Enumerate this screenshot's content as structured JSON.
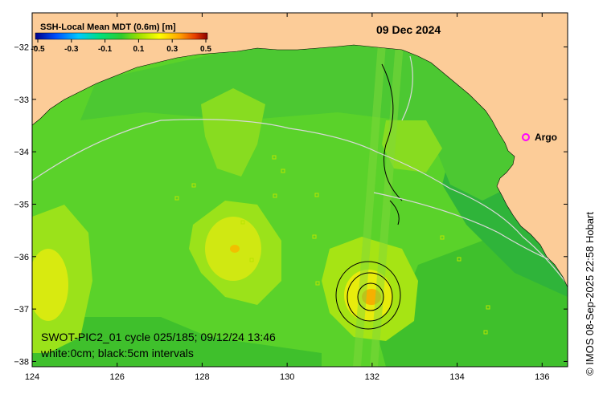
{
  "map": {
    "date": "09 Dec 2024",
    "colorbar": {
      "title": "SSH-Local Mean MDT (0.6m) [m]",
      "ticks": [
        "-0.5",
        "-0.3",
        "-0.1",
        "0.1",
        "0.3",
        "0.5"
      ],
      "range": [
        -0.5,
        0.5
      ],
      "colors": [
        "#00008b",
        "#0050ff",
        "#00c8ff",
        "#00e07a",
        "#2ecc2e",
        "#9be000",
        "#ffff00",
        "#ffa000",
        "#e63c00",
        "#8b0000"
      ]
    },
    "x_ticks": [
      124,
      126,
      128,
      130,
      132,
      134,
      136
    ],
    "x_tick_labels": [
      "124",
      "126",
      "128",
      "130",
      "132",
      "134",
      "136"
    ],
    "y_ticks": [
      -32,
      -33,
      -34,
      -35,
      -36,
      -37,
      -38
    ],
    "y_tick_labels": [
      "−32",
      "−33",
      "−34",
      "−35",
      "−36",
      "−37",
      "−38"
    ],
    "lon_range": [
      124,
      136.6
    ],
    "lat_range": [
      -38.1,
      -31.35
    ],
    "argo_label": "Argo",
    "argo_location": [
      135.5,
      -33.6
    ],
    "annotation_line1": "SWOT-PIC2_01 cycle 025/185; 09/12/24 13:46",
    "annotation_line2": "white:0cm; black:5cm intervals",
    "credit": "© IMOS 08-Sep-2025 22:58 Hobart",
    "colors": {
      "land": "#fccc98",
      "ocean_base": "#5ad22a",
      "argo_marker": "#ff00ff"
    }
  }
}
